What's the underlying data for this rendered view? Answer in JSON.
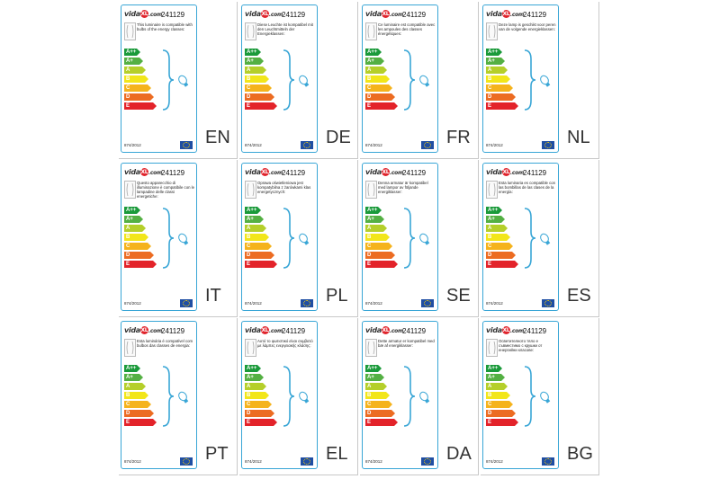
{
  "product_code": "241129",
  "regulation": "874/2012",
  "logo": {
    "left": "vida",
    "dot": "XL",
    "right": ".com"
  },
  "energy_classes": [
    "A++",
    "A+",
    "A",
    "B",
    "C",
    "D",
    "E"
  ],
  "class_colors": [
    "#1a9a3a",
    "#54b043",
    "#b5cf2a",
    "#f2e61a",
    "#f5b31c",
    "#ec6c22",
    "#e3232a"
  ],
  "cards": [
    {
      "lang": "EN",
      "text": "This luminaire is compatible with bulbs of the energy classes:"
    },
    {
      "lang": "DE",
      "text": "Diese Leuchte ist kompatibel mit den Leuchtmitteln der Energieklassen:"
    },
    {
      "lang": "FR",
      "text": "Ce luminaire est compatible avec les ampoules des classes énergétiques:"
    },
    {
      "lang": "NL",
      "text": "Deze lamp is geschikt voor peren van de volgende energieklassen:"
    },
    {
      "lang": "IT",
      "text": "Questo apparecchio di illuminazione è compatibile con le lampadine delle classi energetiche:"
    },
    {
      "lang": "PL",
      "text": "Oprawa oświetleniowa jest kompatybilna z żarówkami klas energetycznych:"
    },
    {
      "lang": "SE",
      "text": "Denna armatur är kompatibel med lampor av följande energiklasser:"
    },
    {
      "lang": "ES",
      "text": "Esta luminaria es compatible con las bombillas de las clases de la energía:"
    },
    {
      "lang": "PT",
      "text": "Esta luminária é compatível com bulbos das classes de energia:"
    },
    {
      "lang": "EL",
      "text": "Αυτό το φωτιστικό είναι συμβατό με λάμπες ενεργειακής κλάσης:"
    },
    {
      "lang": "DA",
      "text": "Dette armatur er kompatibel med bæ af energiklasser:"
    },
    {
      "lang": "BG",
      "text": "Осветителното тяло е съвместимо с крушки от енергийни класове:"
    }
  ]
}
